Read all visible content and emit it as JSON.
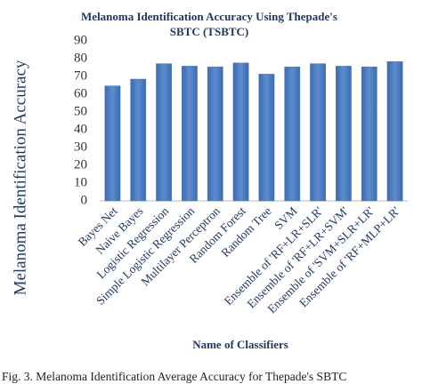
{
  "chart_data": {
    "type": "bar",
    "title": "Melanoma Identification Accuracy Using Thepade's SBTC (TSBTC)",
    "y_label": "Melanoma Identification Accuracy",
    "x_label": "Name of Classifiers",
    "caption": "Fig. 3.   Melanoma Identification Average Accuracy for Thepade's SBTC",
    "categories": [
      "Bayes Net",
      "Naive Bayes",
      "Logistic Regression",
      "Simple Logistic Regression",
      "Multilayer Perceptron",
      "Random Forest",
      "Random Tree",
      "SVM",
      "Ensemble of 'RF+LR+SLR'",
      "Ensemble of 'RF+LR+SVM'",
      "Ensemble of 'SVM+SLR+LR'",
      "Ensemble of 'RF+MLP+LR'"
    ],
    "values": [
      64.7,
      68.5,
      77.2,
      75.8,
      75.4,
      77.6,
      71.3,
      75.4,
      77.2,
      75.8,
      75.4,
      78.4
    ],
    "color": "#4f7fc0",
    "ylim": [
      0,
      90
    ],
    "yticks": [
      0,
      10,
      20,
      30,
      40,
      50,
      60,
      70,
      80,
      90
    ],
    "grid": false
  }
}
